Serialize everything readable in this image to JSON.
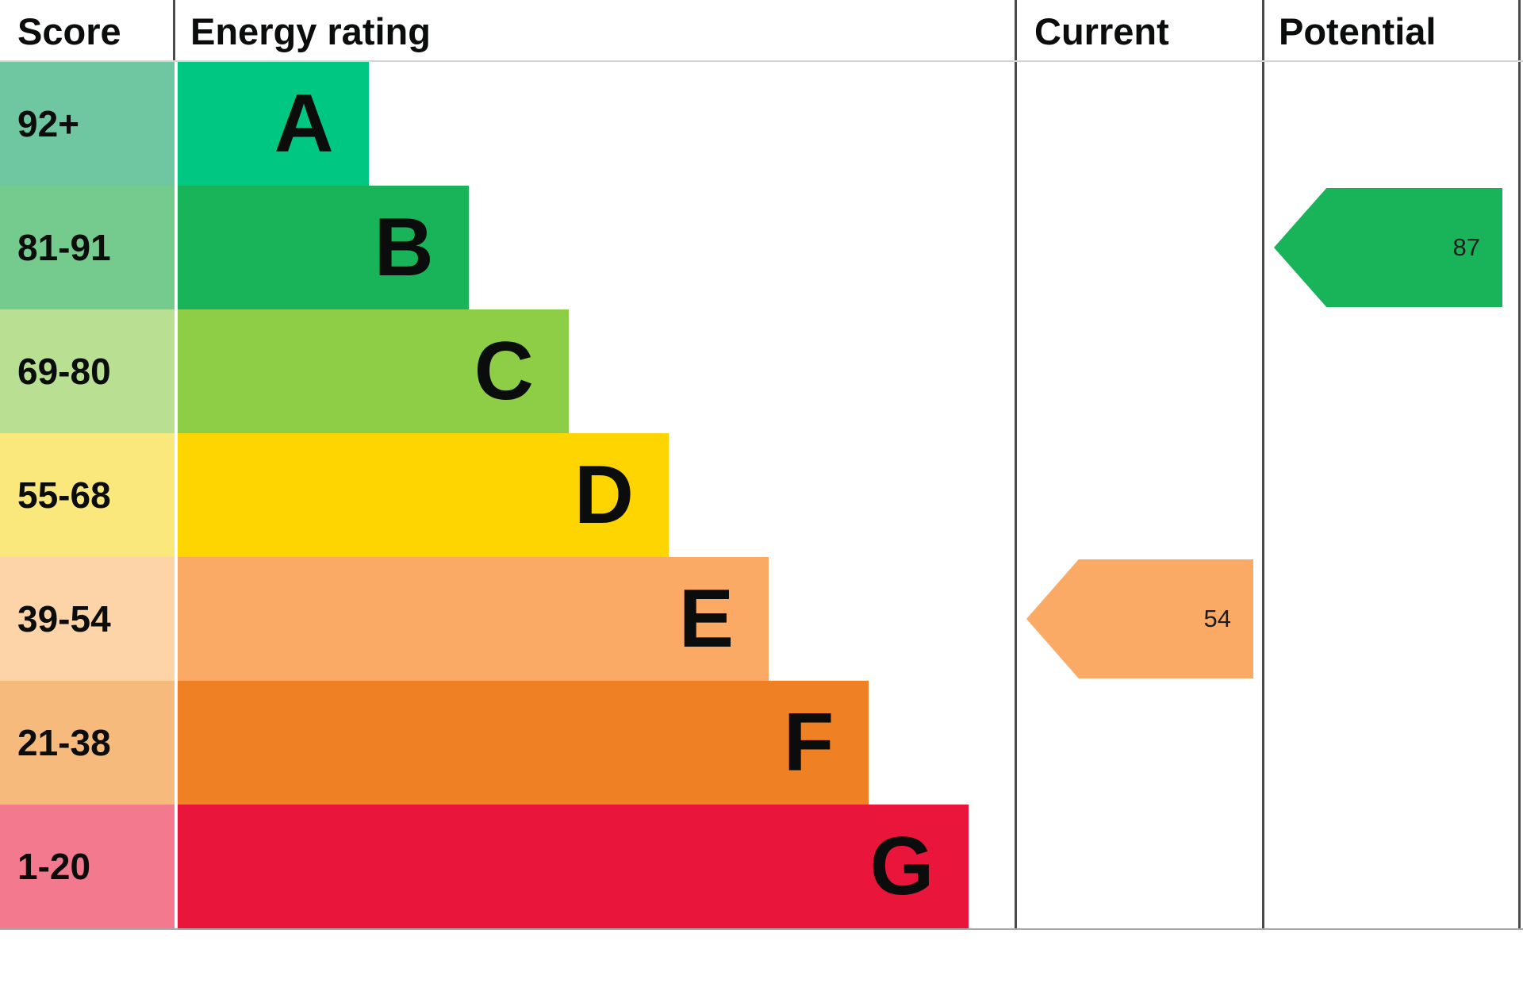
{
  "header": {
    "score": "Score",
    "energy_rating": "Energy rating",
    "current": "Current",
    "potential": "Potential"
  },
  "chart_data": {
    "type": "bar",
    "variant": "epc-energy-rating",
    "columns": [
      "Score",
      "Energy rating",
      "Current",
      "Potential"
    ],
    "bands": [
      {
        "letter": "A",
        "score_range": "92+",
        "color": "#00c781",
        "tint": "#6fc7a2",
        "bar_width": "22.7%"
      },
      {
        "letter": "B",
        "score_range": "81-91",
        "color": "#19b459",
        "tint": "#75ca8e",
        "bar_width": "34.6%"
      },
      {
        "letter": "C",
        "score_range": "69-80",
        "color": "#8dce46",
        "tint": "#b9df92",
        "bar_width": "46.5%"
      },
      {
        "letter": "D",
        "score_range": "55-68",
        "color": "#ffd500",
        "tint": "#fae87c",
        "bar_width": "58.4%"
      },
      {
        "letter": "E",
        "score_range": "39-54",
        "color": "#fbaa65",
        "tint": "#fdd3a8",
        "bar_width": "70.3%"
      },
      {
        "letter": "F",
        "score_range": "21-38",
        "color": "#ef8023",
        "tint": "#f5ba7c",
        "bar_width": "82.2%"
      },
      {
        "letter": "G",
        "score_range": "1-20",
        "color": "#e9153b",
        "tint": "#f3798e",
        "bar_width": "94.1%"
      }
    ],
    "current": {
      "value": "54",
      "band": "E",
      "color": "#fbaa65"
    },
    "potential": {
      "value": "87",
      "band": "B",
      "color": "#19b459"
    }
  }
}
